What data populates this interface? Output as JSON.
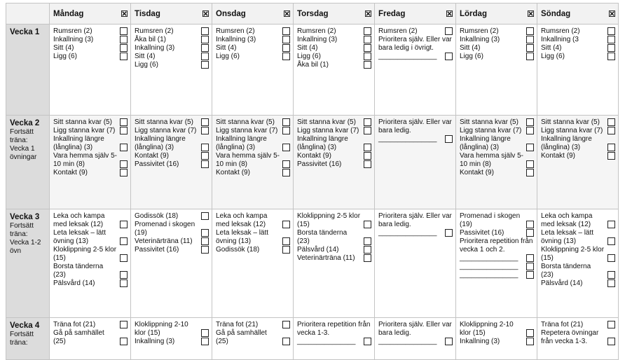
{
  "header": {
    "days": [
      "Måndag",
      "Tisdag",
      "Onsdag",
      "Torsdag",
      "Fredag",
      "Lördag",
      "Söndag"
    ]
  },
  "weeks": [
    {
      "label": "Vecka 1",
      "cells": [
        [
          "Rumsren (2)",
          "Inkallning (3)",
          "Sitt (4)",
          "Ligg (6)"
        ],
        [
          "Rumsren (2)",
          "Åka bil (1)",
          "Inkallning (3)",
          "Sitt (4)",
          "Ligg (6)"
        ],
        [
          "Rumsren (2)",
          "Inkallning (3)",
          "Sitt (4)",
          "Ligg (6)"
        ],
        [
          "Rumsren (2)",
          "Inkallning (3)",
          "Sitt (4)",
          "Ligg (6)",
          "Åka bil (1)"
        ],
        [
          "Rumsren (2)",
          {
            "text": "Prioritera själv. Eller var bara ledig i övrigt.",
            "box": false
          },
          "_______________"
        ],
        [
          "Rumsren (2)",
          "Inkallning (3)",
          "Sitt (4)",
          "Ligg (6)"
        ],
        [
          "Rumsren (2)",
          "Inkallning (3",
          "Sitt (4)",
          "Ligg (6)"
        ]
      ]
    },
    {
      "label": "Vecka 2",
      "sub": "Fortsätt träna: Vecka 1 övningar",
      "cells": [
        [
          "Sitt stanna kvar (5)",
          "Ligg stanna kvar (7)",
          "Inkallning längre (långlina) (3)",
          "Vara hemma själv 5-10 min (8)",
          "Kontakt (9)"
        ],
        [
          "Sitt stanna kvar (5)",
          "Ligg stanna kvar (7)",
          "Inkallning längre (långlina) (3)",
          "Kontakt (9)",
          "Passivitet (16)"
        ],
        [
          "Sitt stanna kvar (5)",
          "Ligg stanna kvar (7)",
          "Inkallning längre (långlina) (3)",
          "Vara hemma själv 5-10 min (8)",
          "Kontakt (9)"
        ],
        [
          "Sitt stanna kvar (5)",
          "Ligg stanna kvar (7)",
          "Inkallning längre (långlina) (3)",
          "Kontakt (9)",
          "Passivitet (16)"
        ],
        [
          {
            "text": "Prioritera själv. Eller var bara ledig.",
            "box": false
          },
          "_______________"
        ],
        [
          "Sitt stanna kvar (5)",
          "Ligg stanna kvar (7)",
          "Inkallning längre (långlina) (3)",
          "Vara hemma själv 5-10 min (8)",
          "Kontakt (9)"
        ],
        [
          "Sitt stanna kvar (5)",
          "Ligg stanna kvar (7)",
          "Inkallning längre (långlina) (3)",
          "Kontakt (9)"
        ]
      ]
    },
    {
      "label": "Vecka 3",
      "sub": "Fortsätt träna: Vecka 1-2 övn",
      "cells": [
        [
          "Leka och kampa med leksak (12)",
          "Leta leksak – lätt övning (13)",
          "Kloklippning 2-5 klor (15)",
          "Borsta tänderna (23)",
          "Pälsvård (14)"
        ],
        [
          "Godissök (18)",
          "Promenad i skogen (19)",
          "Veterinärträna (11)",
          "Passivitet (16)"
        ],
        [
          "Leka och kampa med leksak (12)",
          "Leta leksak – lätt övning (13)",
          "Godissök (18)"
        ],
        [
          "Kloklippning 2-5 klor (15)",
          "Borsta tänderna (23)",
          "Pälsvård (14)",
          "Veterinärträna (11)"
        ],
        [
          {
            "text": "Prioritera själv. Eller var bara ledig.",
            "box": false
          },
          "_______________"
        ],
        [
          "Promenad i skogen (19)",
          "Passivitet (16)",
          {
            "text": "Prioritera repetition från vecka 1 och 2.",
            "box": false
          },
          "_______________",
          "_______________",
          "_______________"
        ],
        [
          "Leka och kampa med leksak (12)",
          "Leta leksak – lätt övning (13)",
          "Kloklippning 2-5 klor (15)",
          "Borsta tänderna (23)",
          "Pälsvård (14)"
        ]
      ]
    },
    {
      "label": "Vecka 4",
      "sub": "Fortsätt träna:",
      "cells": [
        [
          "Träna fot (21)",
          "Gå på samhället (25)"
        ],
        [
          "Kloklippning 2-10 klor (15)",
          "Inkallning (3)"
        ],
        [
          "Träna fot (21)",
          "Gå på samhället (25)"
        ],
        [
          {
            "text": "Prioritera repetition från vecka 1-3.",
            "box": false
          },
          "_______________"
        ],
        [
          {
            "text": "Prioritera själv. Eller var bara ledig.",
            "box": false
          },
          "_______________"
        ],
        [
          "Kloklippning 2-10 klor (15)",
          "Inkallning (3)"
        ],
        [
          "Träna fot (21)",
          "Repetera övningar från vecka 1-3."
        ]
      ]
    }
  ]
}
